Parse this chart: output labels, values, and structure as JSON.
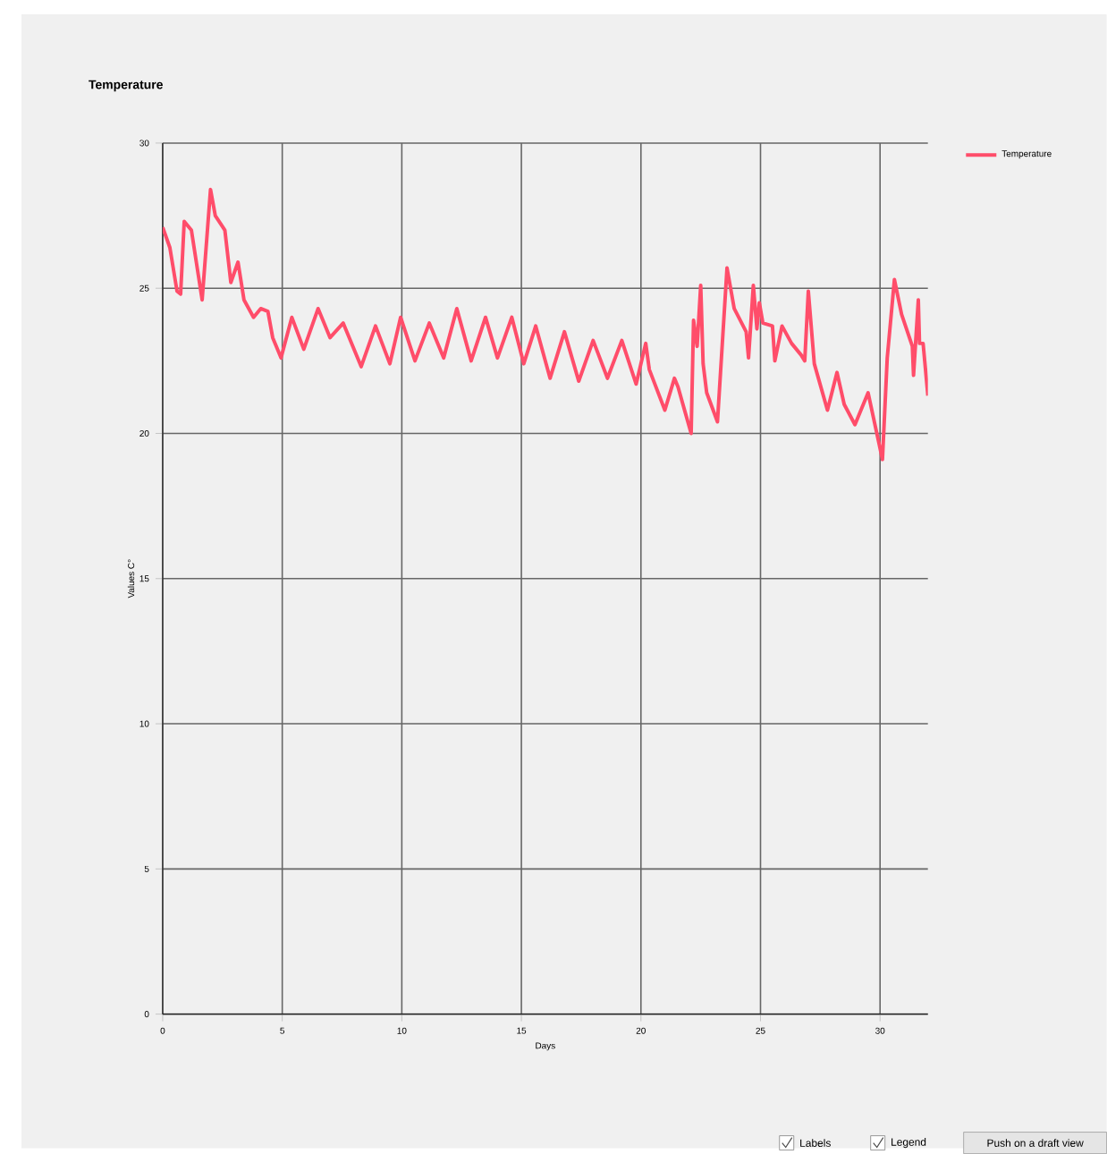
{
  "chart_data": {
    "type": "line",
    "title": "Temperature",
    "xlabel": "Days",
    "ylabel": "Values  C°",
    "x": [
      0,
      0.3,
      0.6,
      0.75,
      0.9,
      1.2,
      1.65,
      2.0,
      2.2,
      2.6,
      2.85,
      3.15,
      3.4,
      3.8,
      4.1,
      4.4,
      4.6,
      4.95,
      5.4,
      5.9,
      6.5,
      7.0,
      7.55,
      8.3,
      8.9,
      9.5,
      9.95,
      10.55,
      11.15,
      11.75,
      12.3,
      12.9,
      13.5,
      14.0,
      14.6,
      15.1,
      15.6,
      16.2,
      16.8,
      17.4,
      18.0,
      18.6,
      19.2,
      19.8,
      20.2,
      20.35,
      21.0,
      21.4,
      21.55,
      22.1,
      22.2,
      22.35,
      22.5,
      22.6,
      22.75,
      23.2,
      23.6,
      23.9,
      24.4,
      24.5,
      24.7,
      24.85,
      24.95,
      25.1,
      25.5,
      25.6,
      25.9,
      26.3,
      26.7,
      26.85,
      27.0,
      27.25,
      27.8,
      28.2,
      28.5,
      28.95,
      29.5,
      30.1,
      30.3,
      30.6,
      30.9,
      31.35,
      31.4,
      31.6,
      31.65,
      31.8,
      32.0
    ],
    "series": [
      {
        "name": "Temperature",
        "color": "#ff4d6a",
        "values": [
          27.1,
          26.4,
          24.9,
          24.8,
          27.3,
          27.0,
          24.6,
          28.4,
          27.5,
          27.0,
          25.2,
          25.9,
          24.6,
          24.0,
          24.3,
          24.2,
          23.3,
          22.6,
          24.0,
          22.9,
          24.3,
          23.3,
          23.8,
          22.3,
          23.7,
          22.4,
          24.0,
          22.5,
          23.8,
          22.6,
          24.3,
          22.5,
          24.0,
          22.6,
          24.0,
          22.4,
          23.7,
          21.9,
          23.5,
          21.8,
          23.2,
          21.9,
          23.2,
          21.7,
          23.1,
          22.2,
          20.8,
          21.9,
          21.6,
          20.0,
          23.9,
          23.0,
          25.1,
          22.4,
          21.4,
          20.4,
          25.7,
          24.3,
          23.5,
          22.6,
          25.1,
          23.6,
          24.5,
          23.8,
          23.7,
          22.5,
          23.7,
          23.1,
          22.7,
          22.5,
          24.9,
          22.4,
          20.8,
          22.1,
          21.0,
          20.3,
          21.4,
          19.1,
          22.6,
          25.3,
          24.1,
          23.0,
          22.0,
          24.6,
          23.1,
          23.1,
          21.3
        ]
      }
    ],
    "xlim": [
      0,
      32
    ],
    "ylim": [
      0,
      30
    ],
    "xticks": [
      0,
      5,
      10,
      15,
      20,
      25,
      30
    ],
    "yticks": [
      0,
      5,
      10,
      15,
      20,
      25,
      30
    ],
    "grid": true,
    "legend": "right",
    "line_style": "solid",
    "marker": "none",
    "annotations": [
      "Labels",
      "Legend",
      "Push on a draft view"
    ]
  }
}
